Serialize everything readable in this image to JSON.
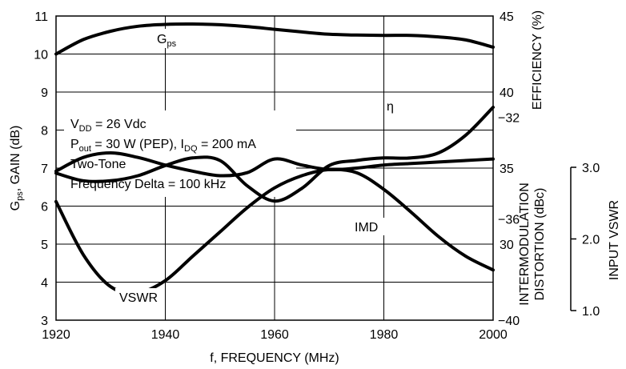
{
  "chart_data": {
    "type": "line",
    "xlabel": "f, FREQUENCY (MHz)",
    "xlim": [
      1920,
      2000
    ],
    "xticks": [
      "1920",
      "1940",
      "1960",
      "1980",
      "2000"
    ],
    "grid": true,
    "axes": {
      "left": {
        "label_main": "G",
        "label_sub": "ps",
        "label_rest": ", GAIN (dB)",
        "range": [
          3,
          11
        ],
        "ticks": [
          "3",
          "4",
          "5",
          "6",
          "7",
          "8",
          "9",
          "10",
          "11"
        ]
      },
      "efficiency": {
        "label": "EFFICIENCY (%)",
        "range": [
          25,
          45
        ],
        "ticks": [
          "45",
          "40",
          "35",
          "30"
        ]
      },
      "imd": {
        "label_line1": "INTERMODULATION",
        "label_line2": "DISTORTION (dBc)",
        "range": [
          -40,
          -28
        ],
        "ticks": [
          "-32",
          "-36",
          "-40"
        ]
      },
      "vswr": {
        "label": "INPUT VSWR",
        "range": [
          1.0,
          3.0
        ],
        "ticks": [
          "3.0",
          "2.0",
          "1.0"
        ]
      }
    },
    "series": [
      {
        "name_main": "G",
        "name_sub": "ps",
        "axis": "left",
        "x": [
          1920,
          1925,
          1930,
          1935,
          1940,
          1945,
          1950,
          1955,
          1960,
          1965,
          1970,
          1975,
          1980,
          1985,
          1990,
          1995,
          2000
        ],
        "y": [
          10.0,
          10.38,
          10.6,
          10.73,
          10.78,
          10.79,
          10.77,
          10.72,
          10.65,
          10.58,
          10.52,
          10.5,
          10.49,
          10.49,
          10.45,
          10.37,
          10.18
        ]
      },
      {
        "name": "η",
        "axis": "efficiency",
        "x": [
          1920,
          1925,
          1930,
          1935,
          1940,
          1945,
          1950,
          1955,
          1960,
          1965,
          1970,
          1975,
          1980,
          1985,
          1990,
          1995,
          2000
        ],
        "y": [
          34.8,
          35.7,
          36.0,
          35.7,
          35.2,
          34.8,
          34.5,
          34.7,
          35.6,
          35.2,
          34.9,
          35.0,
          35.2,
          35.3,
          35.4,
          35.5,
          35.6
        ]
      },
      {
        "name": "IMD",
        "axis": "imd",
        "x": [
          1920,
          1925,
          1930,
          1935,
          1940,
          1945,
          1950,
          1955,
          1960,
          1965,
          1970,
          1975,
          1980,
          1985,
          1990,
          1995,
          2000
        ],
        "y": [
          -34.2,
          -34.5,
          -34.5,
          -34.3,
          -33.9,
          -33.6,
          -33.7,
          -34.7,
          -35.3,
          -34.8,
          -33.9,
          -33.7,
          -33.6,
          -33.6,
          -33.4,
          -32.7,
          -31.6
        ]
      },
      {
        "name": "VSWR",
        "axis": "vswr",
        "x": [
          1920,
          1925,
          1930,
          1935,
          1940,
          1945,
          1950,
          1955,
          1960,
          1965,
          1970,
          1975,
          1980,
          1985,
          1990,
          1995,
          2000
        ],
        "y": [
          1.78,
          1.43,
          1.22,
          1.18,
          1.26,
          1.42,
          1.58,
          1.74,
          1.87,
          1.95,
          1.99,
          1.97,
          1.86,
          1.71,
          1.55,
          1.42,
          1.33
        ]
      }
    ],
    "annotations": {
      "line1_main": "V",
      "line1_sub": "DD",
      "line1_rest": " = 26 Vdc",
      "line2_main": "P",
      "line2_sub": "out",
      "line2_mid": " = 30 W (PEP), I",
      "line2_sub2": "DQ",
      "line2_rest": " = 200 mA",
      "line3": "Two-Tone",
      "line4": "Frequency Delta = 100 kHz"
    }
  }
}
